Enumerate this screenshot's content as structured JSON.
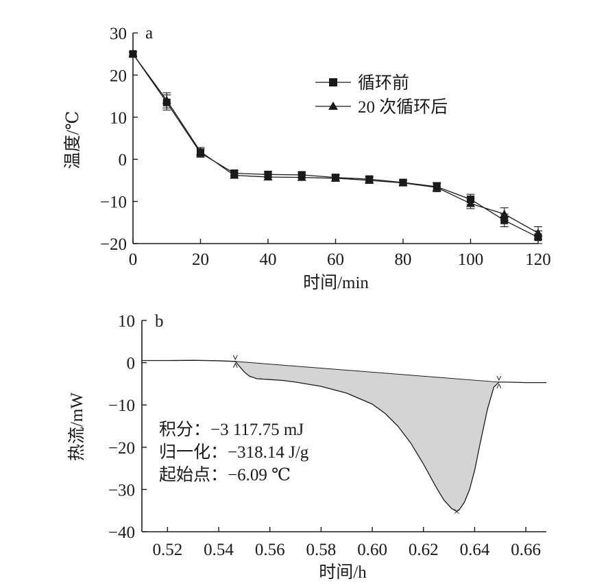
{
  "chart_data": [
    {
      "type": "line",
      "panel_label": "a",
      "xlabel": "时间/min",
      "ylabel": "温度/℃",
      "xlim": [
        0,
        120
      ],
      "ylim": [
        -20,
        30
      ],
      "xticks": [
        0,
        20,
        40,
        60,
        80,
        100,
        120
      ],
      "yticks": [
        30,
        20,
        10,
        0,
        -10,
        -20
      ],
      "ytick_labels": [
        "30",
        "20",
        "10",
        "0",
        "−10",
        "−20"
      ],
      "legend_position": "top-right",
      "x": [
        0,
        10,
        20,
        30,
        40,
        50,
        60,
        70,
        80,
        90,
        100,
        110,
        120
      ],
      "series": [
        {
          "name": "循环前",
          "marker": "square",
          "values": [
            25,
            13.5,
            1.5,
            -3.3,
            -3.6,
            -3.7,
            -4.3,
            -4.7,
            -5.5,
            -6.5,
            -9.5,
            -14.5,
            -18.5
          ],
          "errors": [
            0.5,
            1.8,
            1.0,
            0.7,
            0.7,
            0.7,
            0.7,
            0.7,
            0.6,
            1.0,
            1.2,
            1.5,
            1.5
          ]
        },
        {
          "name": "20 次循环后",
          "marker": "triangle",
          "values": [
            25,
            14.0,
            1.8,
            -3.8,
            -4.2,
            -4.3,
            -4.5,
            -5.0,
            -5.6,
            -6.7,
            -10.5,
            -13.0,
            -17.5
          ],
          "errors": [
            0.5,
            1.8,
            1.0,
            0.7,
            0.7,
            0.7,
            0.7,
            0.7,
            0.6,
            1.0,
            1.2,
            1.5,
            1.5
          ]
        }
      ]
    },
    {
      "type": "area",
      "panel_label": "b",
      "xlabel": "时间/h",
      "ylabel": "热流/mW",
      "xlim": [
        0.51,
        0.668
      ],
      "ylim": [
        -40,
        10
      ],
      "xticks": [
        0.52,
        0.54,
        0.56,
        0.58,
        0.6,
        0.62,
        0.64,
        0.66
      ],
      "xtick_labels": [
        "0.52",
        "0.54",
        "0.56",
        "0.58",
        "0.60",
        "0.62",
        "0.64",
        "0.66"
      ],
      "yticks": [
        10,
        0,
        -10,
        -20,
        -30,
        -40
      ],
      "ytick_labels": [
        "10",
        "0",
        "−10",
        "−20",
        "−30",
        "−40"
      ],
      "series": [
        {
          "name": "",
          "x": [
            0.51,
            0.52,
            0.53,
            0.54,
            0.5465,
            0.548,
            0.55,
            0.552,
            0.555,
            0.56,
            0.565,
            0.57,
            0.58,
            0.59,
            0.6,
            0.605,
            0.61,
            0.615,
            0.62,
            0.625,
            0.628,
            0.631,
            0.633,
            0.634,
            0.636,
            0.638,
            0.64,
            0.642,
            0.645,
            0.6475,
            0.6495,
            0.652,
            0.66,
            0.668
          ],
          "values": [
            0.5,
            0.5,
            0.55,
            0.45,
            0.3,
            -0.8,
            -2.2,
            -3.2,
            -3.8,
            -4.0,
            -4.2,
            -4.6,
            -5.6,
            -7.2,
            -9.8,
            -12.0,
            -15.0,
            -19.0,
            -24.0,
            -29.5,
            -32.5,
            -34.5,
            -35.2,
            -34.8,
            -33.0,
            -30.0,
            -25.5,
            -19.5,
            -11.0,
            -5.8,
            -4.6,
            -4.6,
            -4.7,
            -4.7
          ]
        }
      ],
      "baseline": {
        "x": [
          0.5465,
          0.6495
        ],
        "values": [
          0.3,
          -4.6
        ]
      },
      "integration_limits": [
        0.5465,
        0.6495
      ],
      "annotations": [
        {
          "label": "积分：",
          "value": "−3 117.75 mJ"
        },
        {
          "label": "归一化：",
          "value": "−318.14 J/g"
        },
        {
          "label": "起始点：",
          "value": "−6.09 ℃"
        }
      ]
    }
  ],
  "colors": {
    "line": "#1a1a1a",
    "fill": "#d4d4d4",
    "background": "#ffffff"
  }
}
